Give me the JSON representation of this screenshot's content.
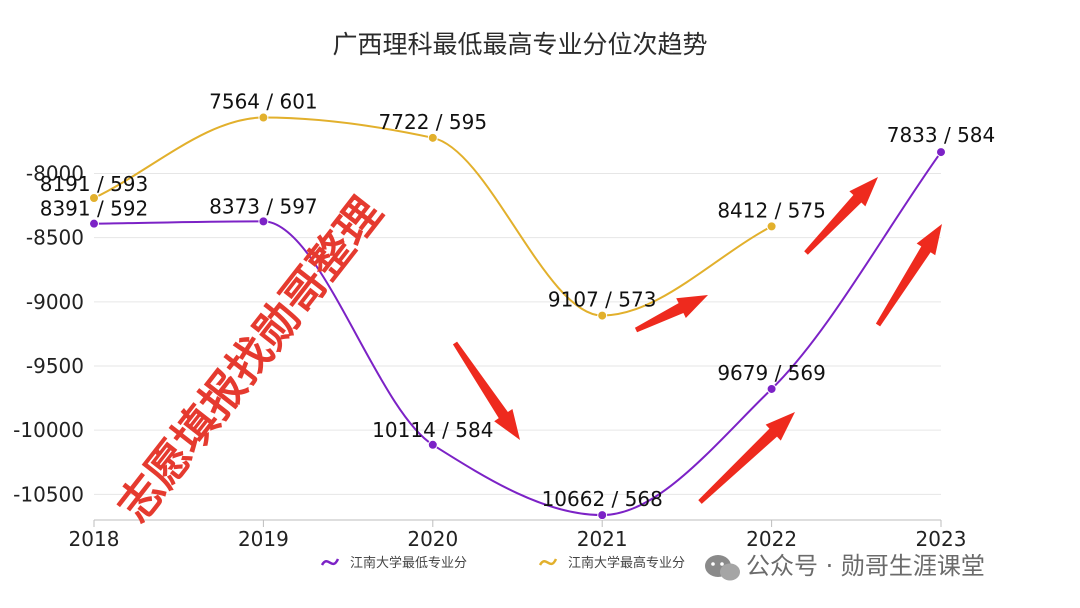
{
  "chart_data": {
    "type": "line",
    "title": "广西理科最低最高专业分位次趋势",
    "categories": [
      "2018",
      "2019",
      "2020",
      "2021",
      "2022",
      "2023"
    ],
    "y_ticks": [
      "-8000",
      "-8500",
      "-9000",
      "-9500",
      "-10000",
      "-10500"
    ],
    "ylim": [
      -10700,
      -7700
    ],
    "grid": true,
    "legend_position": "bottom",
    "series": [
      {
        "name": "江南大学最低专业分",
        "color": "#7c22c6",
        "values": [
          -8391,
          -8373,
          -10114,
          -10662,
          -9679,
          -7833
        ],
        "labels": [
          "8391 / 592",
          "8373 / 597",
          "10114 / 584",
          "10662 / 568",
          "9679 / 569",
          "7833 / 584"
        ]
      },
      {
        "name": "江南大学最高专业分",
        "color": "#e2b02c",
        "values": [
          -8191,
          -7564,
          -7722,
          -9107,
          -8412,
          null
        ],
        "labels": [
          "8191 / 593",
          "7564 / 601",
          "7722 / 595",
          "9107 / 573",
          "8412 / 575",
          null
        ]
      }
    ]
  },
  "watermark": "志愿填报找勋哥整理",
  "brand": "公众号 · 勋哥生涯课堂",
  "colors": {
    "arrow": "#ee2a1e",
    "grid": "#e6e6e6"
  }
}
